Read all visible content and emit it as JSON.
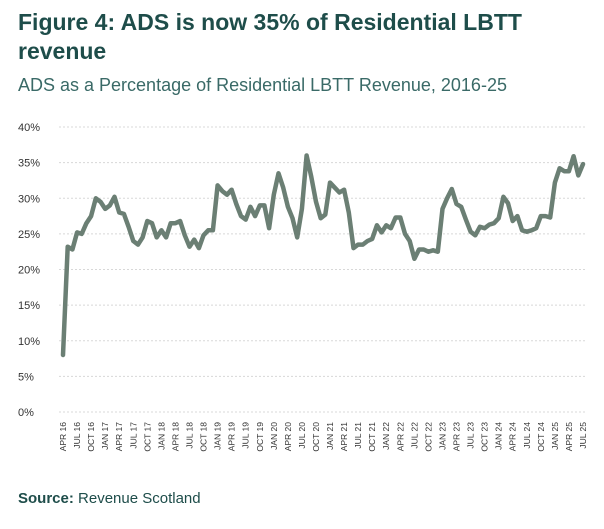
{
  "header": {
    "title": "Figure 4: ADS is now 35% of Residential LBTT revenue",
    "subtitle": "ADS as a Percentage of Residential LBTT Revenue, 2016-25"
  },
  "footer": {
    "source_label": "Source:",
    "source_text": "Revenue Scotland"
  },
  "colors": {
    "line": "#6b7f74",
    "grid": "#d8d8d8",
    "title": "#1e4d4a"
  },
  "chart_data": {
    "type": "line",
    "title": "ADS as a Percentage of Residential LBTT Revenue, 2016-25",
    "xlabel": "",
    "ylabel": "",
    "ylim": [
      0,
      40
    ],
    "yticks": [
      "0%",
      "5%",
      "10%",
      "15%",
      "20%",
      "25%",
      "30%",
      "35%",
      "40%"
    ],
    "grid": "horizontal dotted",
    "legend": "none",
    "x_tick_labels": [
      "APR 16",
      "JUL 16",
      "OCT 16",
      "JAN 17",
      "APR 17",
      "JUL 17",
      "OCT 17",
      "JAN 18",
      "APR 18",
      "JUL 18",
      "OCT 18",
      "JAN 19",
      "APR 19",
      "JUL 19",
      "OCT 19",
      "JAN 20",
      "APR 20",
      "JUL 20",
      "OCT 20",
      "JAN 21",
      "APR 21",
      "JUL 21",
      "OCT 21",
      "JAN 22",
      "APR 22",
      "JUL 22",
      "OCT 22",
      "JAN 23",
      "APR 23",
      "JUL 23",
      "OCT 23",
      "JAN 24",
      "APR 24",
      "JUL 24",
      "OCT 24",
      "JAN 25",
      "APR 25",
      "JUL 25"
    ],
    "series": [
      {
        "name": "",
        "x_start": "2016-04",
        "values": [
          8,
          23.2,
          22.8,
          25.2,
          25,
          26.5,
          27.5,
          30,
          29.5,
          28.5,
          29,
          30.2,
          28,
          27.8,
          26,
          24,
          23.5,
          24.5,
          26.8,
          26.5,
          24.5,
          25.5,
          24.5,
          26.5,
          26.5,
          26.8,
          24.8,
          23.2,
          24.2,
          23,
          24.8,
          25.5,
          25.5,
          31.8,
          31,
          30.5,
          31.2,
          29.2,
          27.5,
          27,
          28.8,
          27.5,
          29,
          29,
          25.8,
          30.5,
          33.5,
          31.5,
          28.8,
          27.2,
          24.5,
          28.5,
          36,
          33,
          29.5,
          27.2,
          27.7,
          32.2,
          31.5,
          30.8,
          31.2,
          28,
          23,
          23.5,
          23.5,
          24,
          24.3,
          26.2,
          25.2,
          26.2,
          25.8,
          27.3,
          27.3,
          25,
          24,
          21.5,
          22.8,
          22.8,
          22.5,
          22.7,
          22.5,
          28.5,
          30,
          31.3,
          29.2,
          28.8,
          27,
          25.3,
          24.8,
          26,
          25.8,
          26.3,
          26.5,
          27.2,
          30.2,
          29.3,
          26.8,
          27.5,
          25.5,
          25.3,
          25.5,
          25.8,
          27.5,
          27.5,
          27.3,
          32.2,
          34.2,
          33.8,
          33.8,
          35.9,
          33.2,
          34.8
        ]
      }
    ]
  }
}
